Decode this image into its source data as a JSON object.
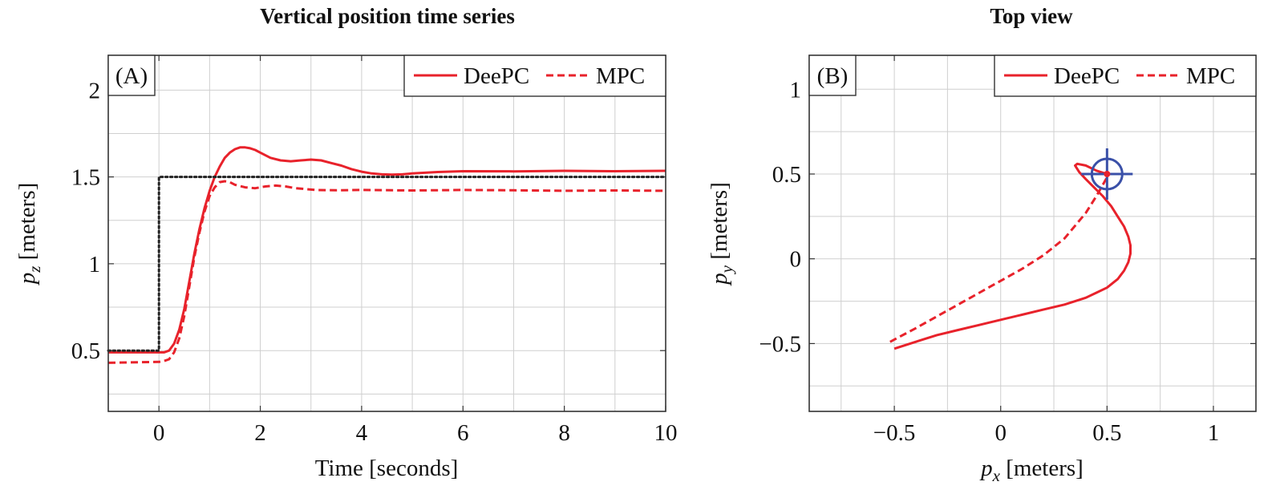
{
  "chart_data": [
    {
      "type": "line",
      "panel_label": "(A)",
      "title": "Vertical position time series",
      "xlabel": "Time [seconds]",
      "ylabel_symbol": "p",
      "ylabel_sub": "z",
      "ylabel_unit": " [meters]",
      "xlim": [
        -1,
        10
      ],
      "ylim": [
        0.15,
        2.2
      ],
      "xticks": [
        0,
        2,
        4,
        6,
        8,
        10
      ],
      "xtick_labels": [
        "0",
        "2",
        "4",
        "6",
        "8",
        "10"
      ],
      "yticks": [
        0.5,
        1,
        1.5,
        2
      ],
      "ytick_labels": [
        "0.5",
        "1",
        "1.5",
        "2"
      ],
      "grid": true,
      "legend_position": "top-right",
      "series": [
        {
          "name": "DeePC",
          "color": "#e8222b",
          "dash": "solid",
          "x": [
            -1,
            0,
            0.1,
            0.2,
            0.3,
            0.4,
            0.5,
            0.6,
            0.7,
            0.8,
            0.9,
            1.0,
            1.1,
            1.2,
            1.3,
            1.4,
            1.5,
            1.6,
            1.7,
            1.8,
            1.9,
            2.0,
            2.2,
            2.4,
            2.6,
            2.8,
            3.0,
            3.2,
            3.4,
            3.6,
            3.8,
            4.0,
            4.2,
            4.4,
            4.6,
            4.8,
            5.0,
            5.5,
            6.0,
            7.0,
            8.0,
            9.0,
            10.0
          ],
          "y": [
            0.49,
            0.49,
            0.49,
            0.5,
            0.54,
            0.62,
            0.74,
            0.9,
            1.06,
            1.2,
            1.32,
            1.42,
            1.5,
            1.56,
            1.61,
            1.64,
            1.66,
            1.67,
            1.67,
            1.665,
            1.655,
            1.64,
            1.61,
            1.595,
            1.59,
            1.595,
            1.6,
            1.595,
            1.58,
            1.565,
            1.545,
            1.53,
            1.52,
            1.515,
            1.513,
            1.515,
            1.52,
            1.528,
            1.533,
            1.532,
            1.535,
            1.533,
            1.535
          ]
        },
        {
          "name": "MPC",
          "color": "#e8222b",
          "dash": "dashed",
          "x": [
            -1,
            0,
            0.1,
            0.2,
            0.3,
            0.4,
            0.5,
            0.6,
            0.7,
            0.8,
            0.9,
            1.0,
            1.1,
            1.2,
            1.3,
            1.4,
            1.5,
            1.7,
            1.9,
            2.1,
            2.3,
            2.5,
            2.7,
            2.9,
            3.1,
            3.5,
            4.0,
            5.0,
            6.0,
            7.0,
            8.0,
            9.0,
            10.0
          ],
          "y": [
            0.43,
            0.435,
            0.44,
            0.45,
            0.49,
            0.57,
            0.7,
            0.87,
            1.04,
            1.18,
            1.3,
            1.39,
            1.44,
            1.47,
            1.475,
            1.47,
            1.455,
            1.44,
            1.435,
            1.445,
            1.45,
            1.445,
            1.435,
            1.43,
            1.425,
            1.423,
            1.425,
            1.422,
            1.425,
            1.423,
            1.42,
            1.422,
            1.42
          ]
        },
        {
          "name": "",
          "color": "#222222",
          "dash": "dotted",
          "x": [
            -1,
            0,
            0,
            10
          ],
          "y": [
            0.5,
            0.5,
            1.5,
            1.5
          ]
        }
      ]
    },
    {
      "type": "line",
      "panel_label": "(B)",
      "title": "Top view",
      "xlabel_symbol": "p",
      "xlabel_sub": "x",
      "xlabel_unit": " [meters]",
      "ylabel_symbol": "p",
      "ylabel_sub": "y",
      "ylabel_unit": " [meters]",
      "xlim": [
        -0.9,
        1.2
      ],
      "ylim": [
        -0.9,
        1.2
      ],
      "xticks": [
        -0.5,
        0,
        0.5,
        1
      ],
      "xtick_labels": [
        "−0.5",
        "0",
        "0.5",
        "1"
      ],
      "yticks": [
        -0.5,
        0,
        0.5,
        1
      ],
      "ytick_labels": [
        "−0.5",
        "0",
        "0.5",
        "1"
      ],
      "grid": true,
      "legend_position": "top-right",
      "target": {
        "x": 0.5,
        "y": 0.5,
        "color": "#3a50a8"
      },
      "series": [
        {
          "name": "DeePC",
          "color": "#e8222b",
          "dash": "solid",
          "x": [
            -0.5,
            -0.4,
            -0.3,
            -0.2,
            -0.1,
            0.0,
            0.1,
            0.2,
            0.3,
            0.4,
            0.45,
            0.5,
            0.55,
            0.58,
            0.6,
            0.61,
            0.61,
            0.6,
            0.58,
            0.55,
            0.52,
            0.48,
            0.44,
            0.4,
            0.37,
            0.35,
            0.36,
            0.4,
            0.45,
            0.5,
            0.52
          ],
          "y": [
            -0.53,
            -0.49,
            -0.45,
            -0.42,
            -0.39,
            -0.36,
            -0.33,
            -0.3,
            -0.27,
            -0.23,
            -0.2,
            -0.17,
            -0.12,
            -0.07,
            -0.02,
            0.03,
            0.08,
            0.13,
            0.19,
            0.25,
            0.31,
            0.37,
            0.42,
            0.47,
            0.51,
            0.55,
            0.56,
            0.55,
            0.52,
            0.5,
            0.5
          ]
        },
        {
          "name": "MPC",
          "color": "#e8222b",
          "dash": "dashed",
          "x": [
            -0.52,
            -0.4,
            -0.3,
            -0.2,
            -0.1,
            0.0,
            0.1,
            0.2,
            0.3,
            0.4,
            0.45,
            0.5
          ],
          "y": [
            -0.49,
            -0.41,
            -0.34,
            -0.27,
            -0.2,
            -0.13,
            -0.06,
            0.02,
            0.12,
            0.27,
            0.37,
            0.48
          ]
        }
      ]
    }
  ]
}
